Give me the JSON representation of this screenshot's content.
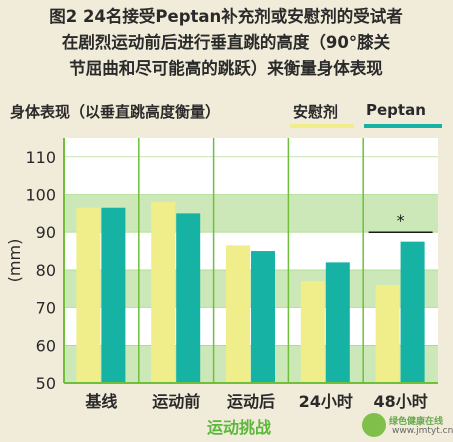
{
  "chart_data": {
    "type": "bar",
    "title": "图2 24名接受Peptan补充剂或安慰剂的受试者\n在剧烈运动前后进行垂直跳的高度（90°膝关\n节屈曲和尽可能高的跳跃）来衡量身体表现",
    "subtitle": "身体表现（以垂直跳高度衡量）",
    "ylabel": "(mm)",
    "ylim": [
      50,
      115
    ],
    "yticks": [
      50,
      60,
      70,
      80,
      90,
      100,
      110
    ],
    "categories": [
      "基线",
      "运动前",
      "运动后",
      "24小时",
      "48小时"
    ],
    "category_group_label": "运动挑战",
    "series": [
      {
        "name": "安慰剂",
        "color": "#f0ee8a",
        "values": [
          96.5,
          98,
          86.5,
          77,
          76
        ]
      },
      {
        "name": "Peptan",
        "color": "#16b3a4",
        "values": [
          96.5,
          95,
          85,
          82,
          87.5
        ]
      }
    ],
    "annotations": [
      {
        "text": "*",
        "category": "48小时"
      }
    ],
    "band_colors": {
      "band": "#cde8b8",
      "plot_bg": "#ffffff",
      "grid": "#6fbf3a",
      "label_group": "#5cb83a"
    }
  },
  "watermark": {
    "line1": "绿色健康在线",
    "line2": "www.jmtyt.cn"
  }
}
